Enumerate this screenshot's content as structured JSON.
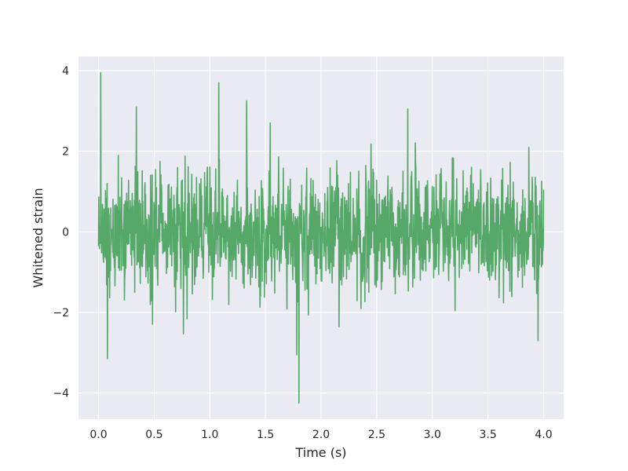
{
  "chart_data": {
    "type": "line",
    "title": "",
    "xlabel": "Time (s)",
    "ylabel": "Whitened strain",
    "xlim": [
      -0.18,
      4.18
    ],
    "ylim": [
      -4.65,
      4.35
    ],
    "xticks": [
      0.0,
      0.5,
      1.0,
      1.5,
      2.0,
      2.5,
      3.0,
      3.5,
      4.0
    ],
    "xtick_labels": [
      "0.0",
      "0.5",
      "1.0",
      "1.5",
      "2.0",
      "2.5",
      "3.0",
      "3.5",
      "4.0"
    ],
    "yticks": [
      -4,
      -2,
      0,
      2,
      4
    ],
    "ytick_labels": [
      "−4",
      "−2",
      "0",
      "2",
      "4"
    ],
    "grid": true,
    "legend": "none",
    "background_color": "#eaeaf2",
    "series": [
      {
        "color": "#55a868",
        "x_start": 0.0,
        "x_end": 4.0,
        "noise_sigma": 0.85,
        "notable_points": [
          {
            "x": 0.02,
            "y": 3.95
          },
          {
            "x": 0.08,
            "y": -3.15
          },
          {
            "x": 1.08,
            "y": 3.7
          },
          {
            "x": 1.33,
            "y": 3.25
          },
          {
            "x": 1.8,
            "y": -4.25
          },
          {
            "x": 1.78,
            "y": -3.05
          },
          {
            "x": 2.78,
            "y": 3.05
          },
          {
            "x": 0.34,
            "y": 3.1
          },
          {
            "x": 3.95,
            "y": -2.7
          }
        ]
      }
    ]
  }
}
